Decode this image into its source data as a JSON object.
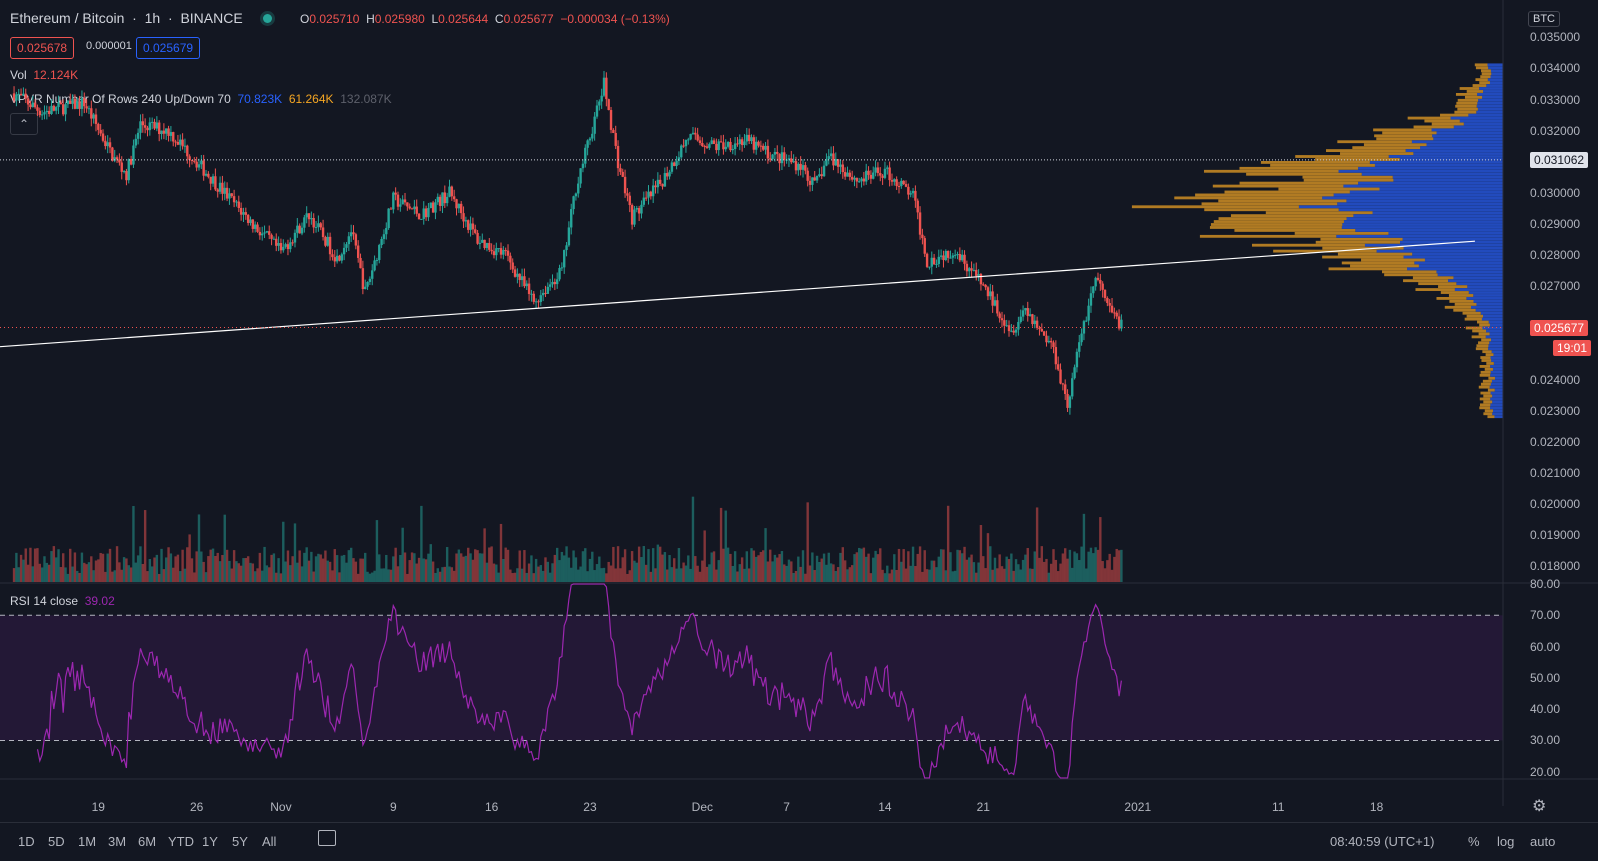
{
  "header": {
    "symbol": "Ethereum / Bitcoin",
    "interval": "1h",
    "exchange": "BINANCE",
    "ohlc": {
      "o_label": "O",
      "o": "0.025710",
      "h_label": "H",
      "h": "0.025980",
      "l_label": "L",
      "l": "0.025644",
      "c_label": "C",
      "c": "0.025677",
      "change": "−0.000034 (−0.13%)"
    },
    "sell_price": "0.025678",
    "spread": "0.000001",
    "buy_price": "0.025679"
  },
  "indicators": {
    "vol_label": "Vol",
    "vol_value": "12.124K",
    "vpvr_label": "VPVR Number Of Rows 240 Up/Down 70",
    "vpvr_up": "70.823K",
    "vpvr_down": "61.264K",
    "vpvr_total": "132.087K",
    "rsi_label": "RSI 14 close",
    "rsi_value": "39.02"
  },
  "price_axis": {
    "currency": "BTC",
    "ticks": [
      "0.035000",
      "0.034000",
      "0.033000",
      "0.032000",
      "0.030000",
      "0.029000",
      "0.028000",
      "0.027000",
      "0.024000",
      "0.023000",
      "0.022000",
      "0.021000",
      "0.020000",
      "0.019000",
      "0.018000"
    ],
    "hline_label": "0.031062",
    "current_price_label": "0.025677",
    "countdown": "19:01"
  },
  "rsi_axis": {
    "ticks": [
      "80.00",
      "70.00",
      "60.00",
      "50.00",
      "40.00",
      "30.00",
      "20.00"
    ]
  },
  "time_axis": {
    "ticks": [
      "19",
      "26",
      "Nov",
      "9",
      "16",
      "23",
      "Dec",
      "7",
      "14",
      "21",
      "2021",
      "11",
      "18"
    ]
  },
  "bottom_bar": {
    "ranges": [
      "1D",
      "5D",
      "1M",
      "3M",
      "6M",
      "YTD",
      "1Y",
      "5Y",
      "All"
    ],
    "clock": "08:40:59 (UTC+1)",
    "percent": "%",
    "log": "log",
    "auto": "auto"
  },
  "colors": {
    "up": "#26a69a",
    "down": "#ef5350",
    "vpvr_up": "#2962ff",
    "vpvr_down": "#f5a623",
    "rsi": "#9c27b0",
    "bg": "#131722"
  },
  "chart_data": {
    "type": "candlestick",
    "price_close_path": [
      [
        "2020-10-13",
        0.0332
      ],
      [
        "2020-10-15",
        0.0326
      ],
      [
        "2020-10-18",
        0.0329
      ],
      [
        "2020-10-20",
        0.0312
      ],
      [
        "2020-10-21",
        0.0306
      ],
      [
        "2020-10-22",
        0.0322
      ],
      [
        "2020-10-24",
        0.032
      ],
      [
        "2020-10-26",
        0.031
      ],
      [
        "2020-10-28",
        0.03
      ],
      [
        "2020-10-30",
        0.029
      ],
      [
        "2020-11-01",
        0.0281
      ],
      [
        "2020-11-03",
        0.0293
      ],
      [
        "2020-11-05",
        0.0279
      ],
      [
        "2020-11-06",
        0.0288
      ],
      [
        "2020-11-07",
        0.0268
      ],
      [
        "2020-11-09",
        0.0298
      ],
      [
        "2020-11-11",
        0.0293
      ],
      [
        "2020-11-13",
        0.03
      ],
      [
        "2020-11-15",
        0.0285
      ],
      [
        "2020-11-17",
        0.028
      ],
      [
        "2020-11-19",
        0.0265
      ],
      [
        "2020-11-21",
        0.0275
      ],
      [
        "2020-11-22",
        0.0302
      ],
      [
        "2020-11-23",
        0.0318
      ],
      [
        "2020-11-24",
        0.0335
      ],
      [
        "2020-11-25",
        0.031
      ],
      [
        "2020-11-26",
        0.0292
      ],
      [
        "2020-11-28",
        0.0303
      ],
      [
        "2020-11-30",
        0.0318
      ],
      [
        "2020-12-02",
        0.0315
      ],
      [
        "2020-12-04",
        0.0317
      ],
      [
        "2020-12-06",
        0.0312
      ],
      [
        "2020-12-08",
        0.0309
      ],
      [
        "2020-12-09",
        0.0302
      ],
      [
        "2020-12-10",
        0.0312
      ],
      [
        "2020-12-12",
        0.0304
      ],
      [
        "2020-12-14",
        0.0307
      ],
      [
        "2020-12-16",
        0.0299
      ],
      [
        "2020-12-17",
        0.0278
      ],
      [
        "2020-12-19",
        0.0282
      ],
      [
        "2020-12-21",
        0.027
      ],
      [
        "2020-12-23",
        0.0256
      ],
      [
        "2020-12-24",
        0.0263
      ],
      [
        "2020-12-26",
        0.025
      ],
      [
        "2020-12-27",
        0.0232
      ],
      [
        "2020-12-28",
        0.0255
      ],
      [
        "2020-12-29",
        0.0273
      ],
      [
        "2020-12-30",
        0.0262
      ],
      [
        "2020-12-31",
        0.0257
      ]
    ],
    "trendline": [
      [
        "2020-10-12",
        0.02506
      ],
      [
        "2021-01-25",
        0.02845
      ]
    ],
    "hline": 0.031062,
    "current_price": 0.025677,
    "y_range": [
      0.0175,
      0.0362
    ],
    "x_range": [
      "2020-10-12",
      "2021-01-27"
    ],
    "rsi_range": [
      18,
      80
    ],
    "rsi_levels": [
      70,
      30
    ],
    "rsi_last": 39.02
  }
}
